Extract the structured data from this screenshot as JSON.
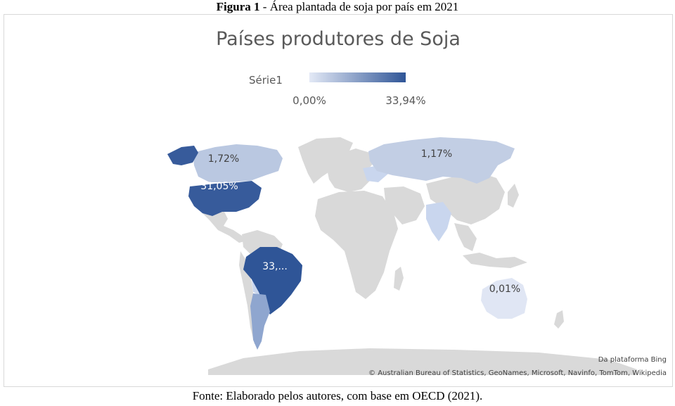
{
  "figure": {
    "label": "Figura 1",
    "caption": " - Área plantada de soja por país em 2021"
  },
  "map": {
    "title": "Países produtores de Soja",
    "legend": {
      "series_name": "Série1",
      "min_label": "0,00%",
      "max_label": "33,94%",
      "color_low": "#e3e9f6",
      "color_high": "#2f5597"
    },
    "colors": {
      "no_data": "#d9d9d9",
      "ocean": "#ffffff"
    },
    "regions": [
      {
        "name": "Brazil",
        "share_percent": 33.94,
        "label": "33,..."
      },
      {
        "name": "United States",
        "share_percent": 31.05,
        "label": "31,05%"
      },
      {
        "name": "Canada",
        "share_percent": 1.72,
        "label": "1,72%"
      },
      {
        "name": "Russia",
        "share_percent": 1.17,
        "label": "1,17%"
      },
      {
        "name": "Australia",
        "share_percent": 0.01,
        "label": "0,01%"
      }
    ],
    "attribution": {
      "provider": "Da plataforma Bing",
      "credits": "© Australian Bureau of Statistics, GeoNames, Microsoft, Navinfo, TomTom, Wikipedia"
    }
  },
  "source": "Fonte: Elaborado pelos autores, com base em OECD (2021)."
}
